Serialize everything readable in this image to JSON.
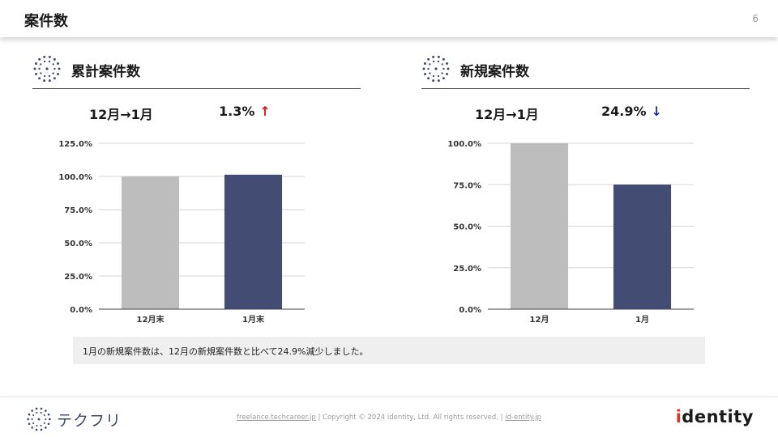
{
  "header": {
    "title": "案件数",
    "page_number": "6"
  },
  "sections": [
    {
      "title": "累計案件数",
      "period": "12月→1月",
      "change": "1.3%",
      "direction": "up",
      "arrow": "↑"
    },
    {
      "title": "新規案件数",
      "period": "12月→1月",
      "change": "24.9%",
      "direction": "down",
      "arrow": "↓"
    }
  ],
  "chart_data": [
    {
      "type": "bar",
      "categories": [
        "12月末",
        "1月末"
      ],
      "values": [
        100.0,
        101.3
      ],
      "ylim": [
        0,
        125
      ],
      "yticks": [
        0,
        25,
        50,
        75,
        100,
        125
      ],
      "ytick_labels": [
        "0.0%",
        "25.0%",
        "50.0%",
        "75.0%",
        "100.0%",
        "125.0%"
      ],
      "bar_colors": [
        "#bdbdbd",
        "#434c73"
      ],
      "grid": true
    },
    {
      "type": "bar",
      "categories": [
        "12月",
        "1月"
      ],
      "values": [
        100.0,
        75.1
      ],
      "ylim": [
        0,
        100
      ],
      "yticks": [
        0,
        25,
        50,
        75,
        100
      ],
      "ytick_labels": [
        "0.0%",
        "25.0%",
        "50.0%",
        "75.0%",
        "100.0%"
      ],
      "bar_colors": [
        "#bdbdbd",
        "#434c73"
      ],
      "grid": true
    }
  ],
  "note": "1月の新規案件数は、12月の新規案件数と比べて24.9%減少しました。",
  "footer": {
    "brand": "テクフリ",
    "site_link": "freelance.techcareer.jp",
    "separator": "|",
    "copyright": "Copyright © 2024 identity, Ltd. All rights reserved.",
    "company_link": "id-entity.jp",
    "company_logo_dot": "i",
    "company_logo_rest": "dentity"
  },
  "colors": {
    "accent": "#434c73",
    "baseline_bar": "#bdbdbd",
    "up": "#cc1f1f",
    "down": "#1f2fa8"
  }
}
